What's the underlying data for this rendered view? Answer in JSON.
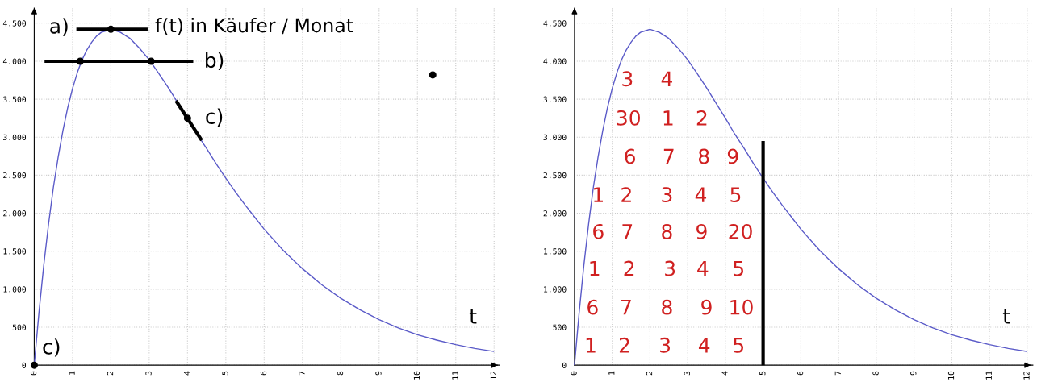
{
  "chart_data": [
    {
      "type": "line",
      "xlim": [
        0,
        12.15
      ],
      "ylim": [
        0,
        4700
      ],
      "xticks": [
        0,
        1,
        2,
        3,
        4,
        5,
        6,
        7,
        8,
        9,
        10,
        11,
        12
      ],
      "yticks": [
        {
          "value": 0,
          "label": "0"
        },
        {
          "value": 500,
          "label": "500"
        },
        {
          "value": 1000,
          "label": "1.000"
        },
        {
          "value": 1500,
          "label": "1.500"
        },
        {
          "value": 2000,
          "label": "2.000"
        },
        {
          "value": 2500,
          "label": "2.500"
        },
        {
          "value": 3000,
          "label": "3.000"
        },
        {
          "value": 3500,
          "label": "3.500"
        },
        {
          "value": 4000,
          "label": "4.000"
        },
        {
          "value": 4500,
          "label": "4.500"
        }
      ],
      "grid": true,
      "line_style": "solid",
      "series": [
        {
          "color": "#5a5ac8",
          "x": [
            0,
            0.125,
            0.25,
            0.375,
            0.5,
            0.625,
            0.75,
            0.875,
            1,
            1.125,
            1.25,
            1.375,
            1.5,
            1.625,
            1.75,
            1.875,
            2,
            2.25,
            2.5,
            2.75,
            3,
            3.25,
            3.5,
            3.75,
            4,
            4.25,
            4.5,
            4.75,
            5,
            5.25,
            5.5,
            5.75,
            6,
            6.5,
            7,
            7.5,
            8,
            8.5,
            9,
            9.5,
            10,
            10.5,
            11,
            11.5,
            12
          ],
          "values": [
            0,
            700,
            1320,
            1860,
            2340,
            2740,
            3090,
            3390,
            3640,
            3850,
            4020,
            4150,
            4250,
            4330,
            4380,
            4400,
            4420,
            4380,
            4300,
            4170,
            4020,
            3840,
            3650,
            3450,
            3250,
            3040,
            2850,
            2650,
            2460,
            2280,
            2110,
            1950,
            1790,
            1510,
            1270,
            1060,
            880,
            730,
            600,
            490,
            400,
            330,
            270,
            220,
            180
          ]
        },
        {
          "color": "#000000",
          "x": [
            1.1,
            2.96
          ],
          "values": [
            4420,
            4420
          ]
        },
        {
          "color": "#000000",
          "x": [
            0.27,
            4.15
          ],
          "values": [
            4000,
            4000
          ]
        },
        {
          "color": "#000000",
          "x": [
            3.7,
            4.37
          ],
          "values": [
            3480,
            2960
          ]
        },
        {
          "type": "scatter",
          "color": "#000000",
          "x": [
            0,
            2,
            1.2,
            3.05,
            4.0,
            10.4
          ],
          "values": [
            0,
            4420,
            4000,
            4000,
            3250,
            3820
          ]
        }
      ],
      "annotations": [
        "a)",
        "f(t) in Käufer / Monat",
        "b)",
        "c)",
        "c)",
        "t"
      ]
    },
    {
      "type": "line",
      "xlim": [
        0,
        12.15
      ],
      "ylim": [
        0,
        4700
      ],
      "xticks": [
        0,
        1,
        2,
        3,
        4,
        5,
        6,
        7,
        8,
        9,
        10,
        11,
        12
      ],
      "yticks": [
        {
          "value": 0,
          "label": "0"
        },
        {
          "value": 500,
          "label": "500"
        },
        {
          "value": 1000,
          "label": "1.000"
        },
        {
          "value": 1500,
          "label": "1.500"
        },
        {
          "value": 2000,
          "label": "2.000"
        },
        {
          "value": 2500,
          "label": "2.500"
        },
        {
          "value": 3000,
          "label": "3.000"
        },
        {
          "value": 3500,
          "label": "3.500"
        },
        {
          "value": 4000,
          "label": "4.000"
        },
        {
          "value": 4500,
          "label": "4.500"
        }
      ],
      "grid": true,
      "line_style": "solid",
      "series": [
        {
          "color": "#5a5ac8",
          "x": [
            0,
            0.125,
            0.25,
            0.375,
            0.5,
            0.625,
            0.75,
            0.875,
            1,
            1.125,
            1.25,
            1.375,
            1.5,
            1.625,
            1.75,
            1.875,
            2,
            2.25,
            2.5,
            2.75,
            3,
            3.25,
            3.5,
            3.75,
            4,
            4.25,
            4.5,
            4.75,
            5,
            5.25,
            5.5,
            5.75,
            6,
            6.5,
            7,
            7.5,
            8,
            8.5,
            9,
            9.5,
            10,
            10.5,
            11,
            11.5,
            12
          ],
          "values": [
            0,
            700,
            1320,
            1860,
            2340,
            2740,
            3090,
            3390,
            3640,
            3850,
            4020,
            4150,
            4250,
            4330,
            4380,
            4400,
            4420,
            4380,
            4300,
            4170,
            4020,
            3840,
            3650,
            3450,
            3250,
            3040,
            2850,
            2650,
            2460,
            2280,
            2110,
            1950,
            1790,
            1510,
            1270,
            1060,
            880,
            730,
            600,
            490,
            400,
            330,
            270,
            220,
            180
          ]
        },
        {
          "color": "#000000",
          "x": [
            5,
            5
          ],
          "values": [
            0,
            2950
          ]
        }
      ],
      "annotations": [
        "1",
        "2",
        "3",
        "4",
        "5",
        "6",
        "7",
        "8",
        "9",
        "10",
        "1",
        "2",
        "3",
        "4",
        "5",
        "6",
        "7",
        "8",
        "9",
        "20",
        "1",
        "2",
        "3",
        "4",
        "5",
        "6",
        "7",
        "8",
        "9",
        "30",
        "1",
        "2",
        "3",
        "4",
        "t"
      ]
    }
  ]
}
